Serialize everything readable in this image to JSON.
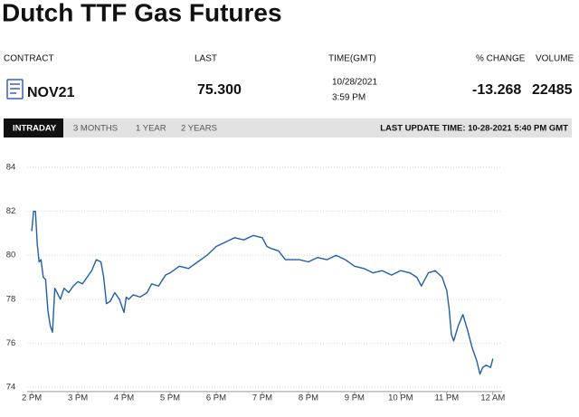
{
  "header": {
    "title": "Dutch TTF Gas Futures"
  },
  "quote": {
    "labels": [
      "CONTRACT",
      "LAST",
      "TIME(GMT)",
      "% CHANGE",
      "VOLUME"
    ],
    "contract": "NOV21",
    "last": "75.300",
    "date": "10/28/2021",
    "time": "3:59 PM",
    "change": "-13.268",
    "volume": "22485"
  },
  "tabs": {
    "items": [
      "INTRADAY",
      "3 MONTHS",
      "1 YEAR",
      "2 YEARS"
    ],
    "last_update": "LAST UPDATE TIME: 10-28-2021 5:40 PM GMT"
  },
  "chart_data": {
    "type": "line",
    "color": "#1f5fa6",
    "grid": true,
    "x": [
      14.0,
      14.04,
      14.08,
      14.12,
      14.16,
      14.2,
      14.25,
      14.3,
      14.35,
      14.4,
      14.45,
      14.5,
      14.55,
      14.62,
      14.7,
      14.8,
      14.9,
      15.0,
      15.1,
      15.2,
      15.3,
      15.4,
      15.5,
      15.56,
      15.62,
      15.7,
      15.8,
      15.9,
      16.0,
      16.05,
      16.1,
      16.2,
      16.35,
      16.5,
      16.6,
      16.75,
      16.9,
      17.0,
      17.2,
      17.4,
      17.6,
      17.8,
      18.0,
      18.2,
      18.4,
      18.6,
      18.8,
      19.0,
      19.1,
      19.2,
      19.35,
      19.5,
      19.6,
      19.8,
      20.0,
      20.2,
      20.4,
      20.6,
      20.8,
      21.0,
      21.2,
      21.4,
      21.6,
      21.8,
      22.0,
      22.2,
      22.35,
      22.45,
      22.6,
      22.75,
      22.9,
      23.0,
      23.05,
      23.1,
      23.15,
      23.25,
      23.35,
      23.45,
      23.55,
      23.65,
      23.72,
      23.78,
      23.85,
      23.95,
      24.0
    ],
    "series": [
      {
        "values": [
          81.1,
          82.0,
          82.0,
          80.5,
          79.7,
          79.8,
          79.0,
          78.9,
          77.5,
          76.8,
          76.5,
          78.5,
          78.3,
          78.0,
          78.5,
          78.3,
          78.6,
          78.8,
          78.7,
          79.0,
          79.3,
          79.8,
          79.7,
          79.0,
          77.8,
          77.9,
          78.3,
          78.0,
          77.4,
          78.1,
          78.0,
          78.2,
          78.1,
          78.3,
          78.7,
          78.6,
          79.1,
          79.2,
          79.5,
          79.4,
          79.7,
          80.0,
          80.4,
          80.6,
          80.8,
          80.7,
          80.9,
          80.8,
          80.4,
          80.3,
          80.2,
          79.8,
          79.8,
          79.8,
          79.7,
          79.9,
          79.8,
          80.0,
          79.8,
          79.5,
          79.4,
          79.2,
          79.3,
          79.1,
          79.3,
          79.2,
          79.0,
          78.6,
          79.2,
          79.3,
          79.0,
          78.4,
          77.6,
          76.4,
          76.1,
          76.8,
          77.3,
          76.6,
          75.8,
          75.2,
          74.6,
          74.9,
          75.0,
          74.9,
          75.3
        ]
      }
    ],
    "xlim": [
      13.9,
      24.2
    ],
    "ylim": [
      73.8,
      84.6
    ],
    "xticks": [
      {
        "value": 14,
        "label": "2 PM"
      },
      {
        "value": 15,
        "label": "3 PM"
      },
      {
        "value": 16,
        "label": "4 PM"
      },
      {
        "value": 17,
        "label": "5 PM"
      },
      {
        "value": 18,
        "label": "6 PM"
      },
      {
        "value": 19,
        "label": "7 PM"
      },
      {
        "value": 20,
        "label": "8 PM"
      },
      {
        "value": 21,
        "label": "9 PM"
      },
      {
        "value": 22,
        "label": "10 PM"
      },
      {
        "value": 23,
        "label": "11 PM"
      },
      {
        "value": 24,
        "label": "12 AM"
      }
    ],
    "yticks": [
      74,
      76,
      78,
      80,
      82,
      84
    ]
  }
}
